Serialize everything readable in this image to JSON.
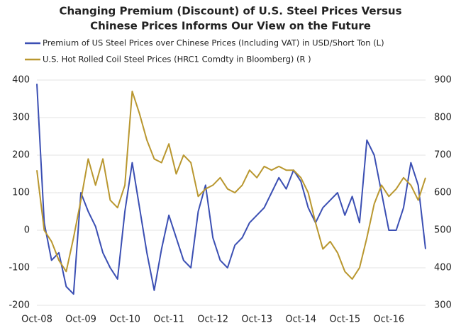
{
  "chart_data": {
    "type": "line",
    "title": [
      "Changing Premium (Discount) of U.S. Steel Prices Versus",
      "Chinese Prices Informs Our View on the Future"
    ],
    "categories": [
      "Oct-08",
      null,
      null,
      null,
      null,
      null,
      "Oct-09",
      null,
      null,
      null,
      null,
      null,
      "Oct-10",
      null,
      null,
      null,
      null,
      null,
      "Oct-11",
      null,
      null,
      null,
      null,
      null,
      "Oct-12",
      null,
      null,
      null,
      null,
      null,
      "Oct-13",
      null,
      null,
      null,
      null,
      null,
      "Oct-14",
      null,
      null,
      null,
      null,
      null,
      "Oct-15",
      null,
      null,
      null,
      null,
      null,
      "Oct-16",
      null,
      null,
      null,
      null,
      null
    ],
    "series": [
      {
        "name": "Premium of US Steel Prices over Chinese Prices (Including VAT) in USD/Short Ton (L)",
        "color": "#3b4fb3",
        "values": [
          390,
          20,
          -80,
          -60,
          -150,
          -170,
          100,
          50,
          10,
          -60,
          -100,
          -130,
          50,
          180,
          60,
          -60,
          -160,
          -50,
          40,
          -20,
          -80,
          -100,
          50,
          120,
          -20,
          -80,
          -100,
          -40,
          -20,
          20,
          40,
          60,
          100,
          140,
          110,
          160,
          130,
          60,
          20,
          60,
          80,
          100,
          40,
          90,
          20,
          240,
          200,
          100,
          0,
          0,
          60,
          180,
          120,
          -50
        ]
      },
      {
        "name": "U.S. Hot Rolled Coil Steel Prices (HRC1 Comdty in Bloomberg) (R )",
        "color": "#b9972f",
        "axis": "y2",
        "values": [
          660,
          500,
          470,
          420,
          390,
          480,
          580,
          690,
          620,
          690,
          580,
          560,
          620,
          870,
          810,
          740,
          690,
          680,
          730,
          650,
          700,
          680,
          590,
          610,
          620,
          640,
          610,
          600,
          620,
          660,
          640,
          670,
          660,
          670,
          660,
          660,
          640,
          600,
          520,
          450,
          470,
          440,
          390,
          370,
          400,
          480,
          570,
          620,
          590,
          610,
          640,
          620,
          580,
          640
        ]
      }
    ],
    "ylim": [
      -200,
      400
    ],
    "yticks": [
      -200,
      -100,
      0,
      100,
      200,
      300,
      400
    ],
    "y2lim": [
      300,
      900
    ],
    "y2ticks": [
      300,
      400,
      500,
      600,
      700,
      800,
      900
    ],
    "grid": true
  }
}
